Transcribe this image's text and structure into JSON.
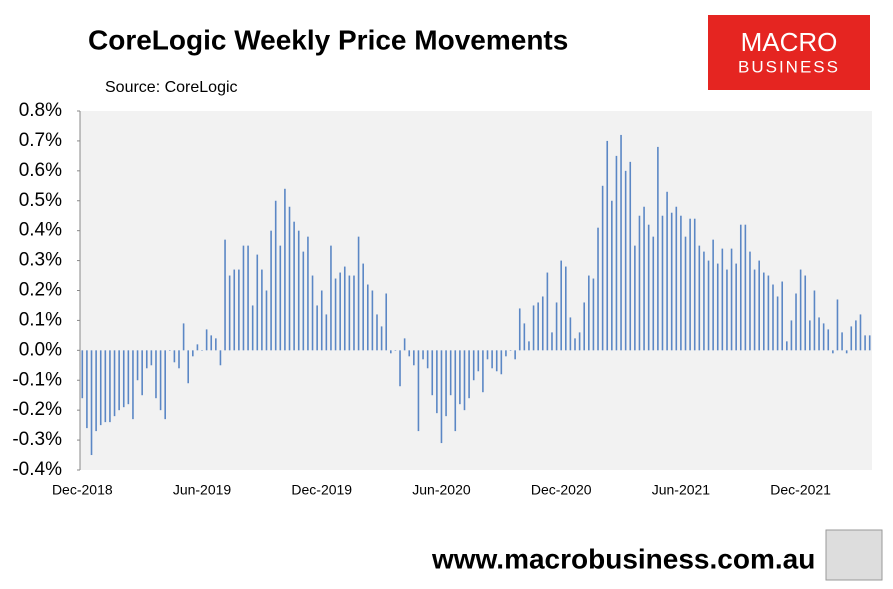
{
  "chart_data": {
    "type": "bar",
    "title": "CoreLogic Weekly Price Movements",
    "subtitle": "Source: CoreLogic",
    "color": "#5b87c5",
    "categories": [
      "Dec-2018",
      null,
      null,
      null,
      null,
      null,
      null,
      null,
      null,
      null,
      null,
      null,
      null,
      null,
      null,
      null,
      null,
      null,
      null,
      null,
      null,
      null,
      null,
      null,
      null,
      null,
      "Jun-2019",
      null,
      null,
      null,
      null,
      null,
      null,
      null,
      null,
      null,
      null,
      null,
      null,
      null,
      null,
      null,
      null,
      null,
      null,
      null,
      null,
      null,
      null,
      null,
      null,
      null,
      "Dec-2019",
      null,
      null,
      null,
      null,
      null,
      null,
      null,
      null,
      null,
      null,
      null,
      null,
      null,
      null,
      null,
      null,
      null,
      null,
      null,
      null,
      null,
      null,
      null,
      null,
      null,
      "Jun-2020",
      null,
      null,
      null,
      null,
      null,
      null,
      null,
      null,
      null,
      null,
      null,
      null,
      null,
      null,
      null,
      null,
      null,
      null,
      null,
      null,
      null,
      null,
      null,
      null,
      null,
      "Dec-2020",
      null,
      null,
      null,
      null,
      null,
      null,
      null,
      null,
      null,
      null,
      null,
      null,
      null,
      null,
      null,
      null,
      null,
      null,
      null,
      null,
      null,
      null,
      null,
      null,
      null,
      "Jun-2021",
      null,
      null,
      null,
      null,
      null,
      null,
      null,
      null,
      null,
      null,
      null,
      null,
      null,
      null,
      null,
      null,
      null,
      null,
      null,
      null,
      null,
      null,
      null,
      null,
      null,
      "Dec-2021",
      null,
      null,
      null,
      null,
      null,
      null,
      null,
      null,
      null,
      null,
      null,
      null,
      null,
      null,
      null
    ],
    "values": [
      -0.16,
      -0.26,
      -0.35,
      -0.27,
      -0.25,
      -0.24,
      -0.24,
      -0.22,
      -0.2,
      -0.19,
      -0.18,
      -0.23,
      -0.1,
      -0.15,
      -0.06,
      -0.05,
      -0.16,
      -0.2,
      -0.23,
      0.0,
      -0.04,
      -0.06,
      0.09,
      -0.11,
      -0.02,
      0.02,
      0.0,
      0.07,
      0.05,
      0.04,
      -0.05,
      0.37,
      0.25,
      0.27,
      0.27,
      0.35,
      0.35,
      0.15,
      0.32,
      0.27,
      0.2,
      0.4,
      0.5,
      0.35,
      0.54,
      0.48,
      0.43,
      0.4,
      0.33,
      0.38,
      0.25,
      0.15,
      0.2,
      0.12,
      0.35,
      0.24,
      0.26,
      0.28,
      0.25,
      0.25,
      0.38,
      0.29,
      0.22,
      0.2,
      0.12,
      0.08,
      0.19,
      -0.01,
      0.0,
      -0.12,
      0.04,
      -0.02,
      -0.05,
      -0.27,
      -0.03,
      -0.06,
      -0.15,
      -0.21,
      -0.31,
      -0.22,
      -0.15,
      -0.27,
      -0.18,
      -0.2,
      -0.16,
      -0.1,
      -0.07,
      -0.14,
      -0.03,
      -0.06,
      -0.07,
      -0.08,
      -0.02,
      0.0,
      -0.03,
      0.14,
      0.09,
      0.03,
      0.15,
      0.16,
      0.18,
      0.26,
      0.06,
      0.16,
      0.3,
      0.28,
      0.11,
      0.04,
      0.06,
      0.16,
      0.25,
      0.24,
      0.41,
      0.55,
      0.7,
      0.5,
      0.65,
      0.72,
      0.6,
      0.63,
      0.35,
      0.45,
      0.48,
      0.42,
      0.38,
      0.68,
      0.45,
      0.53,
      0.46,
      0.48,
      0.45,
      0.38,
      0.44,
      0.44,
      0.35,
      0.33,
      0.3,
      0.37,
      0.29,
      0.34,
      0.27,
      0.34,
      0.29,
      0.42,
      0.42,
      0.33,
      0.27,
      0.3,
      0.26,
      0.25,
      0.22,
      0.18,
      0.23,
      0.03,
      0.1,
      0.19,
      0.27,
      0.25,
      0.1,
      0.2,
      0.11,
      0.09,
      0.07,
      -0.01,
      0.17,
      0.06,
      -0.01,
      0.08,
      0.1,
      0.12,
      0.05,
      0.05
    ],
    "ylim": [
      -0.4,
      0.8
    ],
    "yticks": [
      {
        "value": -0.4,
        "label": "-0.4%"
      },
      {
        "value": -0.3,
        "label": "-0.3%"
      },
      {
        "value": -0.2,
        "label": "-0.2%"
      },
      {
        "value": -0.1,
        "label": "-0.1%"
      },
      {
        "value": 0,
        "label": "0.0%"
      },
      {
        "value": 0.1,
        "label": "0.1%"
      },
      {
        "value": 0.2,
        "label": "0.2%"
      },
      {
        "value": 0.3,
        "label": "0.3%"
      },
      {
        "value": 0.4,
        "label": "0.4%"
      },
      {
        "value": 0.5,
        "label": "0.5%"
      },
      {
        "value": 0.6,
        "label": "0.6%"
      },
      {
        "value": 0.7,
        "label": "0.7%"
      },
      {
        "value": 0.8,
        "label": "0.8%"
      }
    ],
    "grid": false
  },
  "logo": {
    "line1": "MACRO",
    "line2": "BUSINESS"
  },
  "footer": "www.macrobusiness.com.au"
}
